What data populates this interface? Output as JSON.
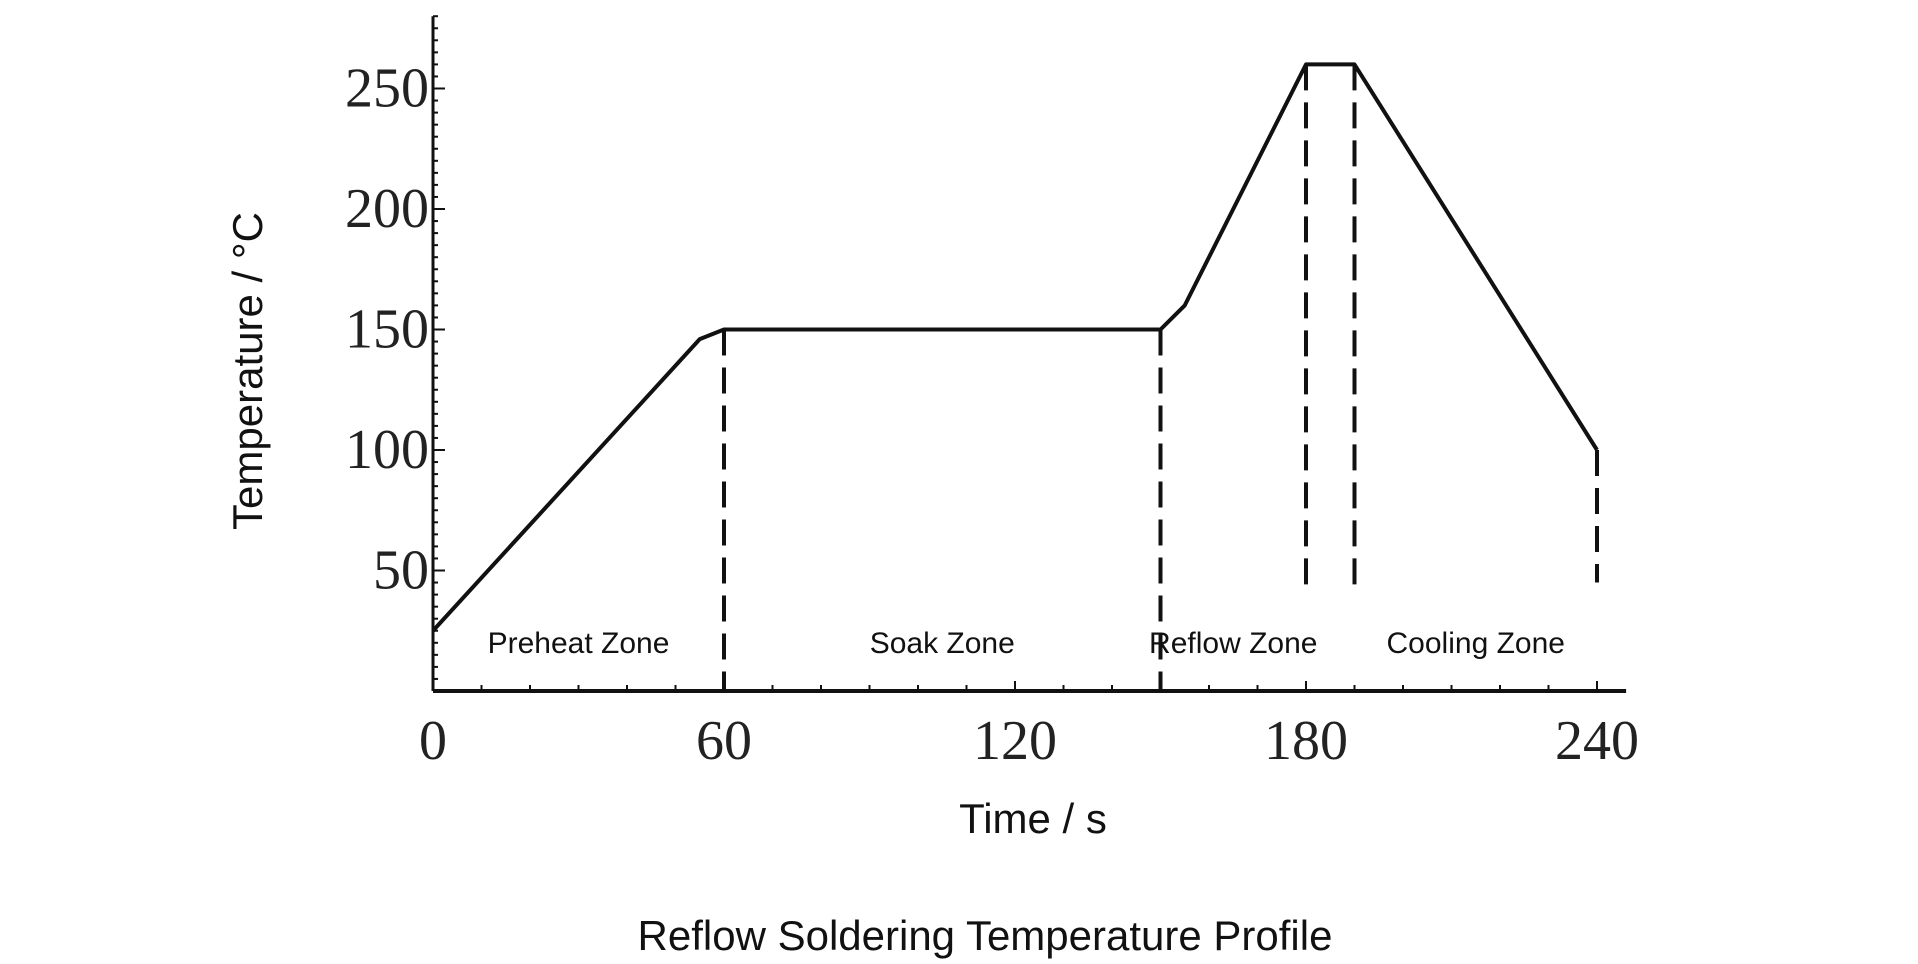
{
  "chart_data": {
    "type": "line",
    "title": "Reflow Soldering Temperature Profile",
    "xlabel": "Time / s",
    "ylabel": "Temperature / °C",
    "xlim": [
      0,
      246
    ],
    "ylim": [
      0,
      280
    ],
    "xticks": [
      0,
      60,
      120,
      180,
      240
    ],
    "yticks": [
      50,
      100,
      150,
      200,
      250
    ],
    "grid": false,
    "legend": "none",
    "series": [
      {
        "x": [
          0,
          55,
          60,
          150,
          155,
          180,
          190,
          240
        ],
        "y": [
          25,
          146,
          150,
          150,
          160,
          260,
          260,
          100
        ]
      }
    ],
    "zone_boundaries": [
      {
        "x": 60,
        "from": 150,
        "to": 0
      },
      {
        "x": 150,
        "from": 150,
        "to": 0
      },
      {
        "x": 180,
        "from": 260,
        "to": 40
      },
      {
        "x": 190,
        "from": 260,
        "to": 40
      },
      {
        "x": 240,
        "from": 100,
        "to": 45
      }
    ],
    "zones": [
      {
        "label": "Preheat Zone",
        "x": 30,
        "y": 20
      },
      {
        "label": "Soak Zone",
        "x": 105,
        "y": 20
      },
      {
        "label": "Reflow Zone",
        "x": 165,
        "y": 20
      },
      {
        "label": "Cooling Zone",
        "x": 215,
        "y": 20
      }
    ],
    "line_color": "#111111"
  }
}
